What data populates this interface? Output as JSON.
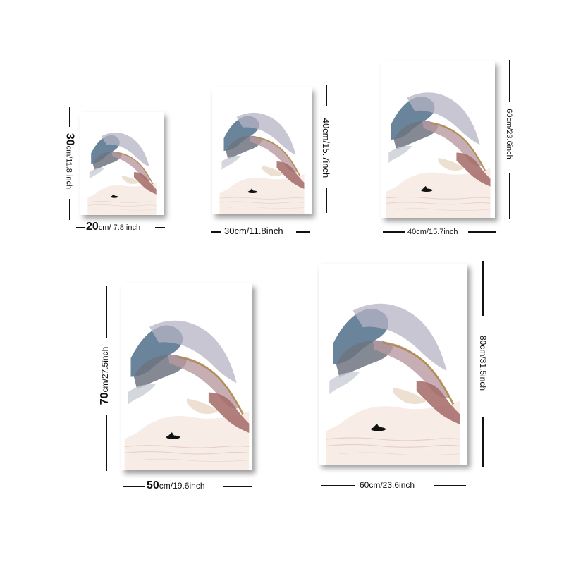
{
  "sizes": [
    {
      "w_big": "20",
      "w_rest": "cm/ 7.8 inch",
      "h_big": "30",
      "h_rest": "cm/11.8 inch"
    },
    {
      "w_text": "30cm/11.8inch",
      "h_text": "40cm/15.7inch"
    },
    {
      "w_text": "40cm/15.7inch",
      "h_text": "60cm/23.6inch"
    },
    {
      "w_big": "50",
      "w_rest": "cm/19.6inch",
      "h_big": "70",
      "h_rest": "cm/27.5inch"
    },
    {
      "w_text": "60cm/23.6inch",
      "h_text": "80cm/31.5inch"
    }
  ],
  "colors": {
    "ink_blue": "#4f6f8a",
    "ink_gray": "#8a8f97",
    "ink_mauve": "#b99aa3",
    "ink_rose": "#a36a66",
    "ink_gold": "#b08a4a"
  }
}
